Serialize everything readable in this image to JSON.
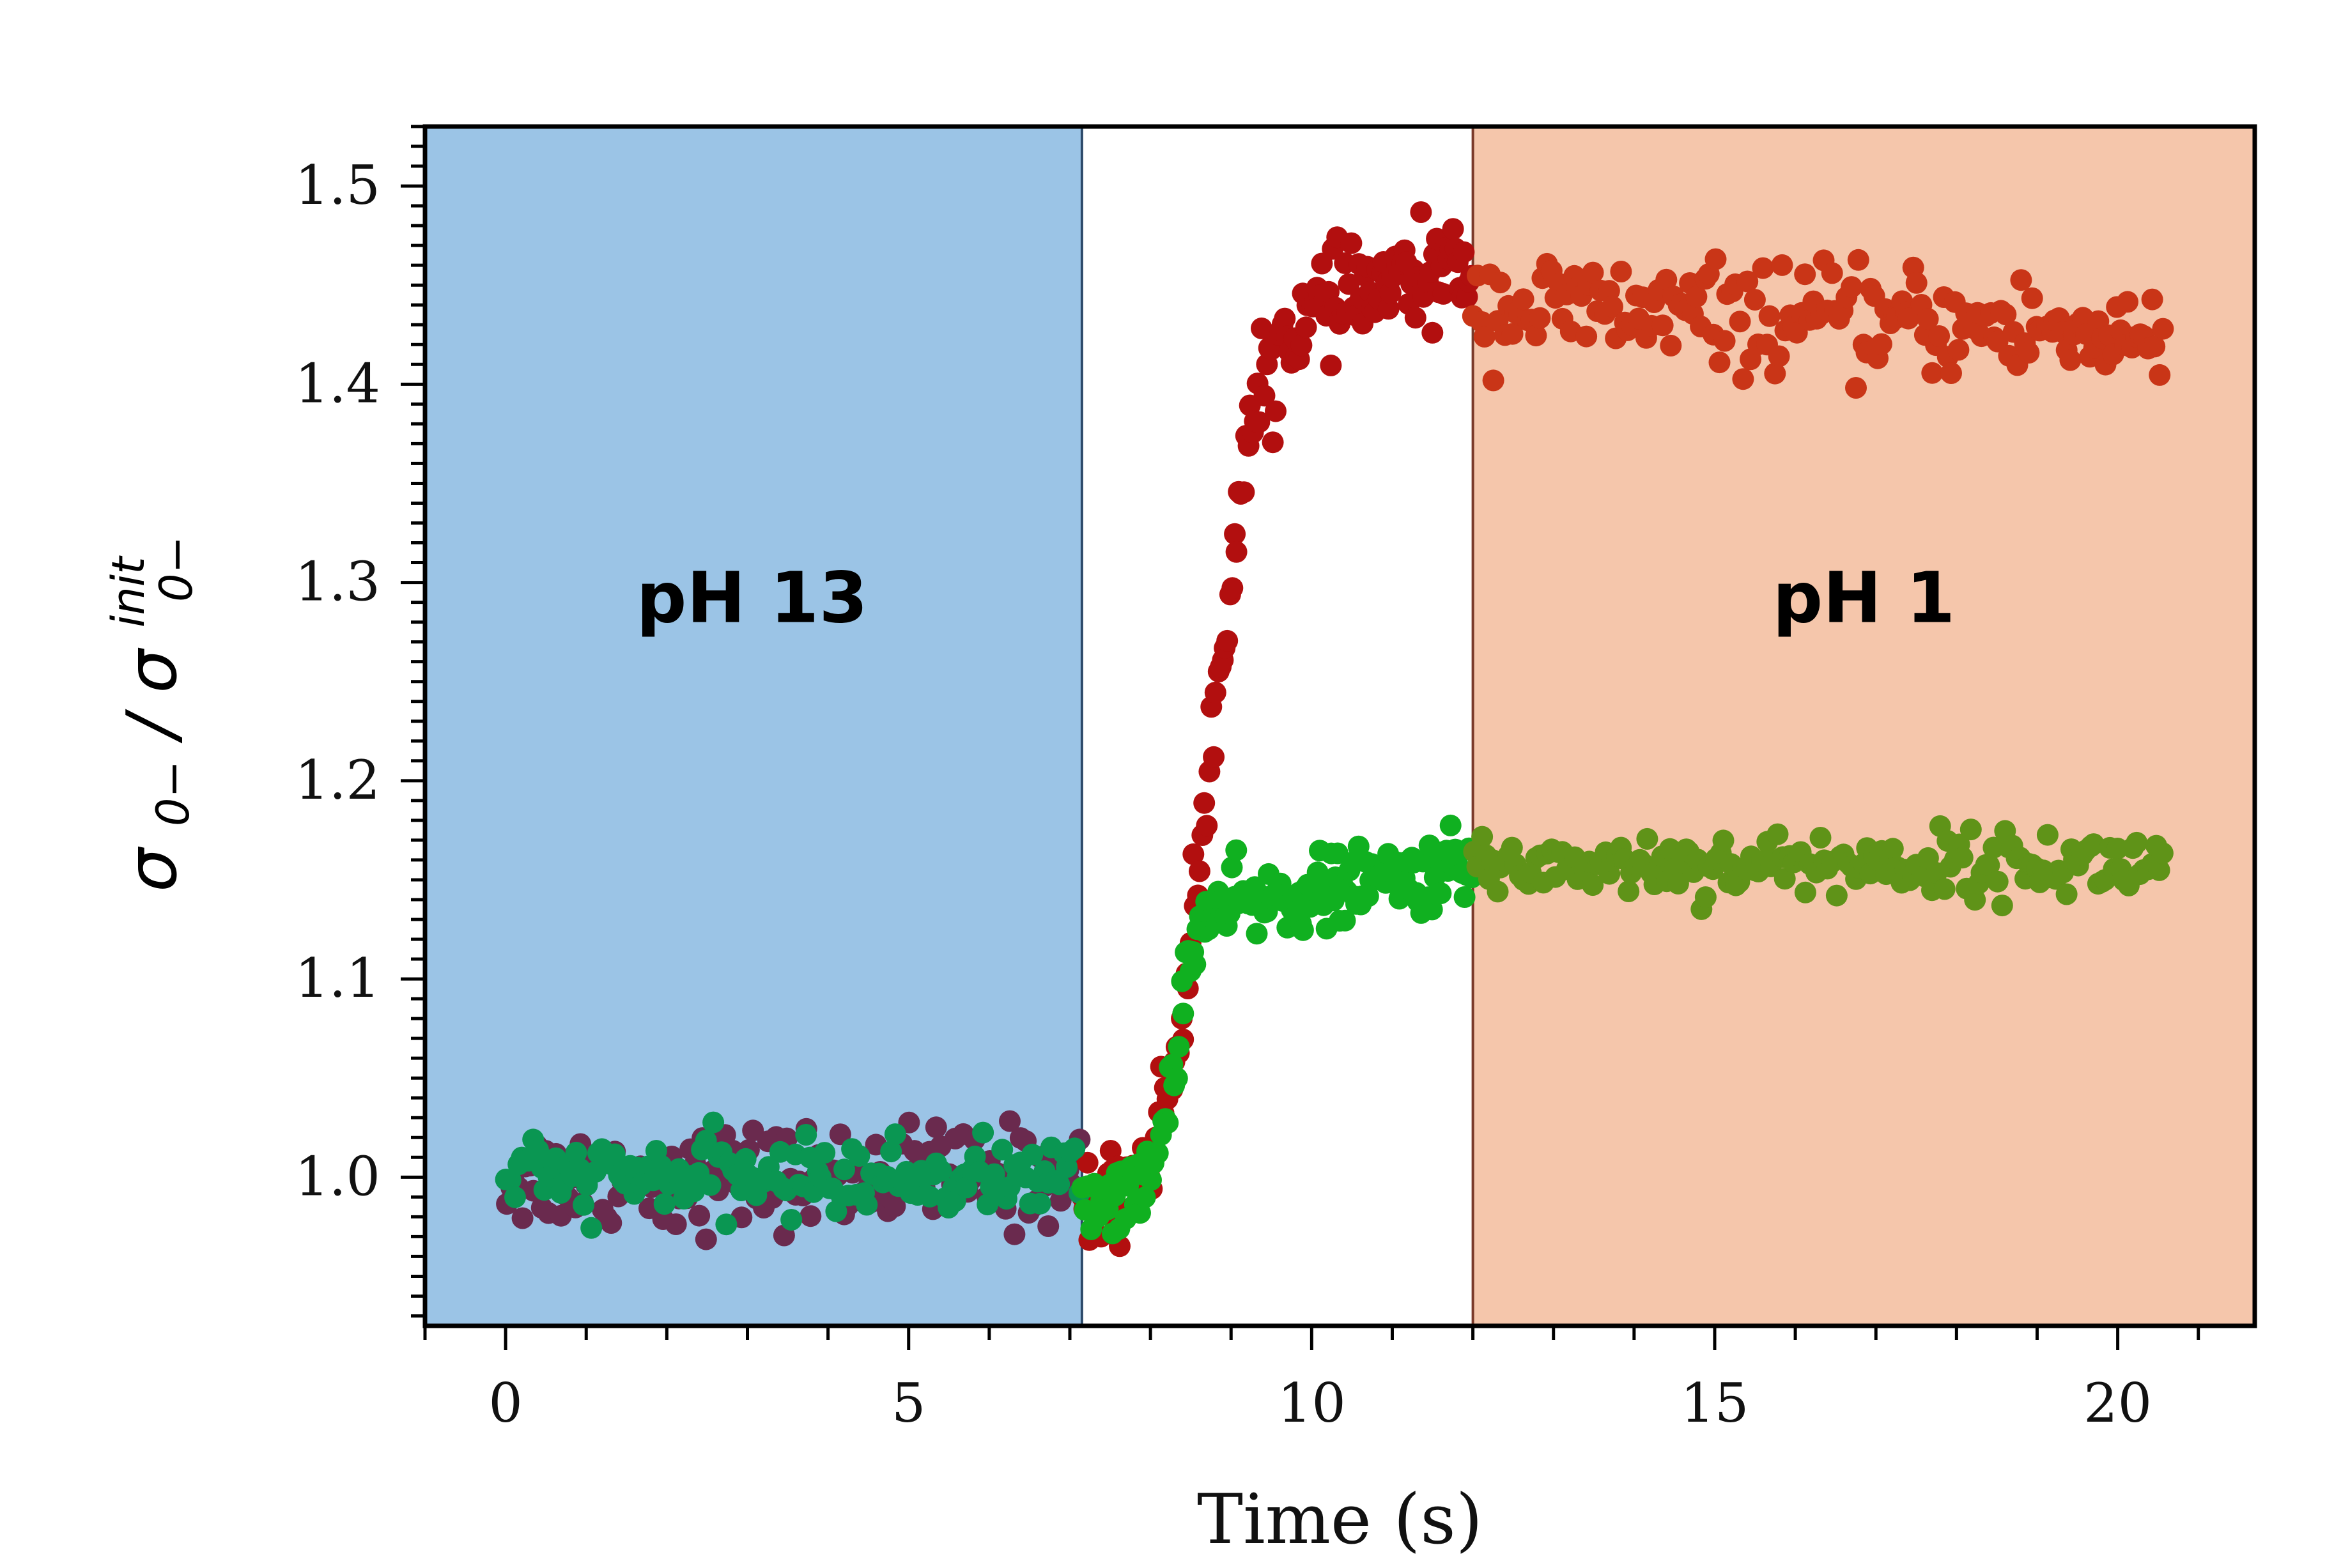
{
  "chart_data": {
    "type": "scatter",
    "title": "",
    "xlabel": "Time (s)",
    "ylabel": {
      "main": "σ",
      "sub": "0−",
      "separator": "/",
      "denominator_main": "σ",
      "denominator_sup": "init",
      "denominator_sub": "0−"
    },
    "xlim": [
      -1.0,
      21.7
    ],
    "ylim": [
      0.925,
      1.53
    ],
    "xticks": [
      0,
      5,
      10,
      15,
      20
    ],
    "xtick_labels": [
      "0",
      "5",
      "10",
      "15",
      "20"
    ],
    "yticks": [
      1.0,
      1.1,
      1.2,
      1.3,
      1.4,
      1.5
    ],
    "ytick_labels": [
      "1.0",
      "1.1",
      "1.2",
      "1.3",
      "1.4",
      "1.5"
    ],
    "regions": [
      {
        "label": "pH 13",
        "x_start": -1.0,
        "x_end": 7.15,
        "color": "#9bc4e6"
      },
      {
        "label": "pH 1",
        "x_start": 12.0,
        "x_end": 21.7,
        "color": "#f5c6ab"
      }
    ],
    "series": [
      {
        "name": "series-red",
        "segments": [
          {
            "x_start": 0.0,
            "x_end": 7.15,
            "color": "#6a2a4e",
            "model": "flat",
            "level": 1.0,
            "noise": 0.013,
            "points": 150
          },
          {
            "x_start": 7.15,
            "x_end": 12.0,
            "color": "#b20f0f",
            "model": "sigmoid",
            "t0": 8.75,
            "width": 0.28,
            "base": 0.985,
            "plateau": 1.44,
            "noise": 0.012,
            "points": 170
          },
          {
            "x_start": 12.0,
            "x_end": 20.6,
            "color": "#c93517",
            "model": "flat",
            "level": 1.44,
            "slope": -0.0018,
            "noise": 0.013,
            "points": 180
          }
        ]
      },
      {
        "name": "series-green",
        "segments": [
          {
            "x_start": 0.0,
            "x_end": 7.15,
            "color": "#0a9652",
            "model": "flat",
            "level": 1.0,
            "noise": 0.009,
            "points": 150
          },
          {
            "x_start": 7.15,
            "x_end": 12.0,
            "color": "#10b020",
            "model": "sigmoid",
            "t0": 8.3,
            "width": 0.12,
            "base": 0.99,
            "plateau": 1.135,
            "rise2": 0.02,
            "noise": 0.009,
            "points": 170
          },
          {
            "x_start": 12.0,
            "x_end": 20.6,
            "color": "#5f9318",
            "model": "flat",
            "level": 1.158,
            "noise": 0.008,
            "points": 180
          }
        ]
      }
    ]
  }
}
